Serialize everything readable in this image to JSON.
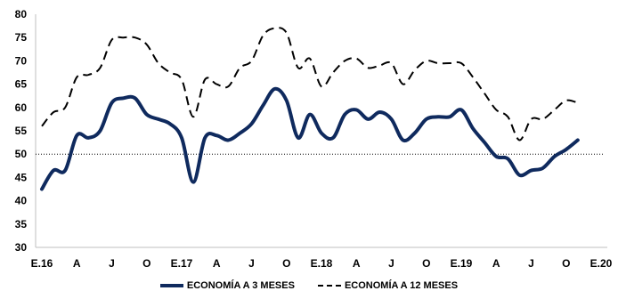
{
  "chart_data": {
    "type": "line",
    "title": "",
    "xlabel": "",
    "ylabel": "",
    "ylim": [
      30,
      80
    ],
    "yticks": [
      30,
      35,
      40,
      45,
      50,
      55,
      60,
      65,
      70,
      75,
      80
    ],
    "x_tick_labels": [
      "E.16",
      "A",
      "J",
      "O",
      "E.17",
      "A",
      "J",
      "O",
      "E.18",
      "A",
      "J",
      "O",
      "E.19",
      "A",
      "J",
      "O",
      "E.20"
    ],
    "x_count": 49,
    "reference_line": 50,
    "grid": false,
    "legend_position": "bottom",
    "series": [
      {
        "name": "ECONOMÍA A 3 MESES",
        "color": "#0f2a5e",
        "style": "solid",
        "values": [
          42.5,
          46.5,
          46.5,
          54.0,
          53.5,
          55.0,
          61.0,
          62.0,
          62.0,
          58.5,
          57.5,
          56.5,
          53.5,
          44.0,
          53.5,
          54.0,
          53.0,
          54.5,
          56.5,
          60.5,
          64.0,
          61.5,
          53.5,
          58.5,
          54.5,
          53.5,
          58.5,
          59.5,
          57.5,
          59.0,
          57.5,
          53.0,
          54.5,
          57.5,
          58.0,
          58.0,
          59.5,
          55.5,
          52.5,
          49.5,
          49.0,
          45.5,
          46.5,
          47.0,
          49.5,
          51.0,
          53.0
        ]
      },
      {
        "name": "ECONOMÍA A 12 MESES",
        "color": "#000000",
        "style": "dashed",
        "values": [
          56.0,
          59.0,
          60.0,
          66.5,
          67.0,
          68.5,
          74.5,
          75.0,
          75.0,
          73.5,
          69.5,
          67.5,
          66.0,
          58.0,
          66.0,
          65.0,
          64.5,
          68.5,
          70.0,
          75.5,
          77.0,
          76.0,
          68.5,
          70.5,
          64.5,
          67.5,
          70.0,
          70.5,
          68.5,
          69.0,
          69.5,
          65.0,
          68.0,
          70.0,
          69.5,
          69.5,
          69.5,
          66.5,
          63.0,
          59.5,
          58.0,
          53.0,
          57.5,
          57.5,
          59.5,
          61.5,
          61.0
        ]
      }
    ]
  }
}
